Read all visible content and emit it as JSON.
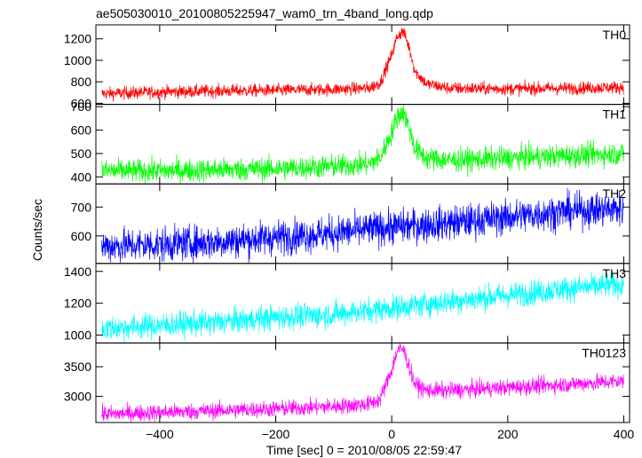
{
  "chart_data": {
    "type": "line",
    "title": "ae505030010_20100805225947_wam0_trn_4band_long.qdp",
    "xlabel": "Time [sec] 0 = 2010/08/05 22:59:47",
    "ylabel": "Counts/sec",
    "xlim": [
      -510,
      410
    ],
    "xticks": [
      -400,
      -200,
      0,
      200,
      400
    ],
    "grid": false,
    "legend": "none",
    "panels": [
      {
        "name": "TH0",
        "color": "#ff0000",
        "ylim": [
          590,
          1330
        ],
        "yticks": [
          600,
          800,
          1000,
          1200
        ],
        "series": {
          "x": [
            -500,
            -400,
            -300,
            -200,
            -100,
            -40,
            -20,
            0,
            10,
            20,
            30,
            40,
            60,
            100,
            200,
            300,
            400
          ],
          "y": [
            690,
            705,
            715,
            720,
            730,
            740,
            790,
            1050,
            1230,
            1270,
            1120,
            900,
            780,
            740,
            735,
            740,
            750
          ]
        },
        "noise": 30
      },
      {
        "name": "TH1",
        "color": "#00ff00",
        "ylim": [
          370,
          710
        ],
        "yticks": [
          400,
          500,
          600,
          700
        ],
        "series": {
          "x": [
            -500,
            -400,
            -300,
            -200,
            -100,
            -40,
            -20,
            0,
            10,
            20,
            30,
            40,
            60,
            100,
            200,
            300,
            400
          ],
          "y": [
            425,
            425,
            430,
            435,
            445,
            455,
            480,
            590,
            660,
            680,
            610,
            520,
            480,
            470,
            480,
            490,
            500
          ]
        },
        "noise": 25
      },
      {
        "name": "TH2",
        "color": "#0000ff",
        "ylim": [
          505,
          780
        ],
        "yticks": [
          600,
          700
        ],
        "series": {
          "x": [
            -500,
            -400,
            -300,
            -200,
            -100,
            0,
            100,
            200,
            300,
            400
          ],
          "y": [
            565,
            570,
            580,
            595,
            610,
            630,
            645,
            665,
            685,
            695
          ]
        },
        "noise": 30
      },
      {
        "name": "TH3",
        "color": "#00ffff",
        "ylim": [
          950,
          1450
        ],
        "yticks": [
          1000,
          1200,
          1400
        ],
        "series": {
          "x": [
            -500,
            -400,
            -300,
            -200,
            -100,
            0,
            100,
            200,
            300,
            400
          ],
          "y": [
            1040,
            1060,
            1080,
            1110,
            1130,
            1170,
            1210,
            1250,
            1290,
            1320
          ]
        },
        "noise": 40
      },
      {
        "name": "TH0123",
        "color": "#ff00ff",
        "ylim": [
          2560,
          3900
        ],
        "yticks": [
          3000,
          3500
        ],
        "series": {
          "x": [
            -500,
            -400,
            -300,
            -200,
            -100,
            -40,
            -20,
            0,
            10,
            20,
            30,
            40,
            60,
            100,
            200,
            300,
            400
          ],
          "y": [
            2700,
            2730,
            2760,
            2790,
            2830,
            2870,
            2950,
            3450,
            3780,
            3800,
            3500,
            3200,
            3100,
            3100,
            3150,
            3200,
            3260
          ]
        },
        "noise": 70
      }
    ]
  }
}
